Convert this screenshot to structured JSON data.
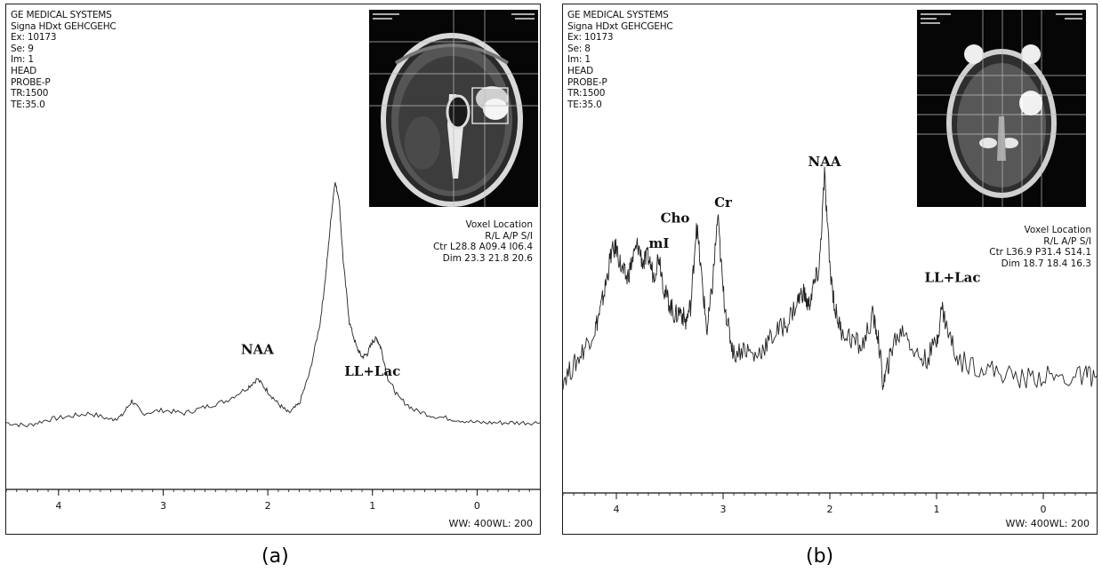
{
  "panels": [
    {
      "id": "a",
      "caption": "(a)",
      "header": [
        "GE MEDICAL SYSTEMS",
        "Signa HDxt GEHCGEHC",
        "Ex: 10173",
        "Se: 9",
        "Im: 1",
        "HEAD",
        "PROBE-P",
        "TR:1500",
        "TE:35.0"
      ],
      "voxel": {
        "title": "Voxel Location",
        "cols": "R/L    A/P    S/I",
        "ctr": "Ctr L28.8  A09.4  I06.4",
        "dim": "Dim  23.3   21.8   20.6"
      },
      "window_level": "WW: 400WL: 200"
    },
    {
      "id": "b",
      "caption": "(b)",
      "header": [
        "GE MEDICAL SYSTEMS",
        "Signa HDxt GEHCGEHC",
        "Ex: 10173",
        "Se: 8",
        "Im: 1",
        "HEAD",
        "PROBE-P",
        "TR:1500",
        "TE:35.0"
      ],
      "voxel": {
        "title": "Voxel Location",
        "cols": "R/L    A/P    S/I",
        "ctr": "Ctr L36.9  P31.4  S14.1",
        "dim": "Dim  18.7   18.4   16.3"
      },
      "window_level": "WW: 400WL: 200"
    }
  ],
  "chart_data": [
    {
      "type": "line",
      "panel": "a",
      "xlabel": "",
      "ylabel": "",
      "x_reversed": true,
      "xlim": [
        4.5,
        -0.6
      ],
      "ylim": [
        0,
        100
      ],
      "ticks": [
        4,
        3,
        2,
        1,
        0
      ],
      "annotations": [
        {
          "text": "NAA",
          "x": 2.1,
          "y": 28
        },
        {
          "text": "LL+Lac",
          "x": 1.0,
          "y": 21
        }
      ],
      "series": [
        {
          "points": [
            [
              4.5,
              6
            ],
            [
              4.3,
              5
            ],
            [
              4.1,
              7
            ],
            [
              3.9,
              8
            ],
            [
              3.7,
              9
            ],
            [
              3.5,
              7
            ],
            [
              3.4,
              8
            ],
            [
              3.3,
              13
            ],
            [
              3.2,
              9
            ],
            [
              3.0,
              10
            ],
            [
              2.8,
              9
            ],
            [
              2.6,
              11
            ],
            [
              2.4,
              13
            ],
            [
              2.2,
              17
            ],
            [
              2.1,
              20
            ],
            [
              2.0,
              16
            ],
            [
              1.9,
              12
            ],
            [
              1.8,
              9
            ],
            [
              1.7,
              12
            ],
            [
              1.6,
              22
            ],
            [
              1.5,
              38
            ],
            [
              1.45,
              52
            ],
            [
              1.4,
              70
            ],
            [
              1.36,
              83
            ],
            [
              1.32,
              78
            ],
            [
              1.28,
              58
            ],
            [
              1.22,
              38
            ],
            [
              1.15,
              30
            ],
            [
              1.1,
              27
            ],
            [
              1.05,
              28
            ],
            [
              1.0,
              32
            ],
            [
              0.96,
              33
            ],
            [
              0.92,
              30
            ],
            [
              0.85,
              20
            ],
            [
              0.75,
              14
            ],
            [
              0.6,
              10
            ],
            [
              0.4,
              8
            ],
            [
              0.2,
              7
            ],
            [
              0.0,
              6
            ],
            [
              -0.2,
              6
            ],
            [
              -0.4,
              6
            ],
            [
              -0.6,
              6
            ]
          ]
        }
      ]
    },
    {
      "type": "line",
      "panel": "b",
      "xlabel": "",
      "ylabel": "",
      "x_reversed": true,
      "xlim": [
        4.5,
        -0.5
      ],
      "ylim": [
        0,
        100
      ],
      "ticks": [
        4,
        3,
        2,
        1,
        0
      ],
      "annotations": [
        {
          "text": "mI",
          "x": 3.6,
          "y": 62
        },
        {
          "text": "Cho",
          "x": 3.45,
          "y": 70
        },
        {
          "text": "Cr",
          "x": 3.0,
          "y": 75
        },
        {
          "text": "NAA",
          "x": 2.05,
          "y": 88
        },
        {
          "text": "LL+Lac",
          "x": 0.85,
          "y": 51
        }
      ],
      "series": [
        {
          "points": [
            [
              4.5,
              20
            ],
            [
              4.4,
              24
            ],
            [
              4.3,
              30
            ],
            [
              4.2,
              36
            ],
            [
              4.15,
              42
            ],
            [
              4.1,
              50
            ],
            [
              4.05,
              60
            ],
            [
              4.0,
              62
            ],
            [
              3.95,
              55
            ],
            [
              3.9,
              52
            ],
            [
              3.85,
              58
            ],
            [
              3.8,
              63
            ],
            [
              3.75,
              57
            ],
            [
              3.7,
              59
            ],
            [
              3.65,
              53
            ],
            [
              3.6,
              60
            ],
            [
              3.55,
              48
            ],
            [
              3.5,
              44
            ],
            [
              3.45,
              40
            ],
            [
              3.4,
              42
            ],
            [
              3.35,
              38
            ],
            [
              3.3,
              44
            ],
            [
              3.25,
              70
            ],
            [
              3.2,
              52
            ],
            [
              3.15,
              35
            ],
            [
              3.1,
              50
            ],
            [
              3.05,
              72
            ],
            [
              3.0,
              48
            ],
            [
              2.95,
              36
            ],
            [
              2.9,
              28
            ],
            [
              2.8,
              30
            ],
            [
              2.7,
              27
            ],
            [
              2.6,
              31
            ],
            [
              2.5,
              35
            ],
            [
              2.4,
              38
            ],
            [
              2.3,
              45
            ],
            [
              2.25,
              48
            ],
            [
              2.2,
              43
            ],
            [
              2.15,
              50
            ],
            [
              2.1,
              55
            ],
            [
              2.05,
              85
            ],
            [
              2.0,
              56
            ],
            [
              1.95,
              42
            ],
            [
              1.9,
              36
            ],
            [
              1.8,
              33
            ],
            [
              1.7,
              30
            ],
            [
              1.6,
              40
            ],
            [
              1.55,
              34
            ],
            [
              1.5,
              18
            ],
            [
              1.45,
              25
            ],
            [
              1.4,
              32
            ],
            [
              1.3,
              36
            ],
            [
              1.2,
              28
            ],
            [
              1.1,
              26
            ],
            [
              1.0,
              32
            ],
            [
              0.95,
              43
            ],
            [
              0.9,
              36
            ],
            [
              0.8,
              26
            ],
            [
              0.6,
              24
            ],
            [
              0.4,
              22
            ],
            [
              0.2,
              20
            ],
            [
              0.0,
              21
            ],
            [
              -0.2,
              20
            ],
            [
              -0.4,
              21
            ],
            [
              -0.5,
              21
            ]
          ]
        }
      ]
    }
  ]
}
